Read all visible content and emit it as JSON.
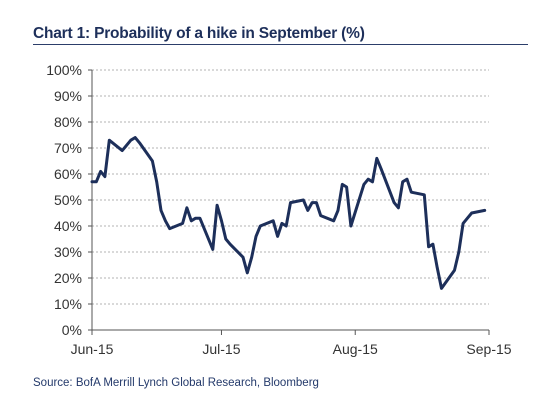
{
  "title": "Chart 1: Probability of a hike in September (%)",
  "source": "Source: BofA Merrill Lynch Global Research, Bloomberg",
  "chart_data": {
    "type": "line",
    "title": "Chart 1: Probability of a hike in September (%)",
    "xlabel": "",
    "ylabel": "",
    "ylim": [
      0,
      100
    ],
    "xlim": [
      "2015-06-01",
      "2015-09-01"
    ],
    "y_ticks": [
      "0%",
      "10%",
      "20%",
      "30%",
      "40%",
      "50%",
      "60%",
      "70%",
      "80%",
      "90%",
      "100%"
    ],
    "x_ticks": [
      {
        "label": "Jun-15",
        "date": "2015-06-01"
      },
      {
        "label": "Jul-15",
        "date": "2015-07-01"
      },
      {
        "label": "Aug-15",
        "date": "2015-08-01"
      },
      {
        "label": "Sep-15",
        "date": "2015-09-01"
      }
    ],
    "grid": "horizontal-dashed",
    "line_color": "#1d2f5a",
    "series": [
      {
        "x": [
          "2015-06-01",
          "2015-06-02",
          "2015-06-03",
          "2015-06-04",
          "2015-06-05",
          "2015-06-08",
          "2015-06-10",
          "2015-06-11",
          "2015-06-12",
          "2015-06-15",
          "2015-06-16",
          "2015-06-17",
          "2015-06-18",
          "2015-06-19",
          "2015-06-22",
          "2015-06-23",
          "2015-06-24",
          "2015-06-25",
          "2015-06-26",
          "2015-06-29",
          "2015-06-30",
          "2015-07-01",
          "2015-07-02",
          "2015-07-03",
          "2015-07-06",
          "2015-07-07",
          "2015-07-08",
          "2015-07-09",
          "2015-07-10",
          "2015-07-13",
          "2015-07-14",
          "2015-07-15",
          "2015-07-16",
          "2015-07-17",
          "2015-07-20",
          "2015-07-21",
          "2015-07-22",
          "2015-07-23",
          "2015-07-24",
          "2015-07-27",
          "2015-07-28",
          "2015-07-29",
          "2015-07-30",
          "2015-07-31",
          "2015-08-03",
          "2015-08-04",
          "2015-08-05",
          "2015-08-06",
          "2015-08-07",
          "2015-08-10",
          "2015-08-11",
          "2015-08-12",
          "2015-08-13",
          "2015-08-14",
          "2015-08-17",
          "2015-08-18",
          "2015-08-19",
          "2015-08-20",
          "2015-08-21",
          "2015-08-24",
          "2015-08-25",
          "2015-08-26",
          "2015-08-27",
          "2015-08-28",
          "2015-08-31"
        ],
        "y": [
          57,
          57,
          61,
          59,
          73,
          69,
          73,
          74,
          72,
          65,
          57,
          46,
          42,
          39,
          41,
          47,
          42,
          43,
          43,
          31,
          48,
          42,
          35,
          33,
          28,
          22,
          28,
          36,
          40,
          42,
          36,
          41,
          40,
          49,
          50,
          46,
          49,
          49,
          44,
          42,
          46,
          56,
          55,
          40,
          56,
          58,
          57,
          66,
          62,
          49,
          47,
          57,
          58,
          53,
          52,
          32,
          33,
          24,
          16,
          23,
          30,
          41,
          43,
          45,
          46
        ]
      }
    ]
  }
}
